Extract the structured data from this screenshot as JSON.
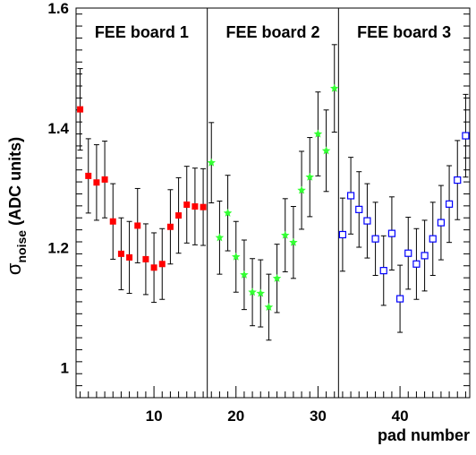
{
  "chart_data": {
    "type": "scatter",
    "xlabel": "pad number",
    "ylabel_main": "σ",
    "ylabel_sub": "noise",
    "ylabel_rest": " (ADC units)",
    "xlim": [
      0.5,
      48.5
    ],
    "ylim": [
      0.95,
      1.6
    ],
    "x_ticks": [
      10,
      20,
      30,
      40
    ],
    "x_tick_labels": [
      "10",
      "20",
      "30",
      "40"
    ],
    "y_ticks": [
      1.0,
      1.2,
      1.4,
      1.6
    ],
    "y_tick_labels": [
      "1",
      "1.2",
      "1.4",
      "1.6"
    ],
    "panel_dividers": [
      16.5,
      32.5
    ],
    "panel_labels": [
      {
        "text": "FEE board 1",
        "x_center": 8.5
      },
      {
        "text": "FEE board 2",
        "x_center": 24.5
      },
      {
        "text": "FEE board 3",
        "x_center": 40.5
      }
    ],
    "series": [
      {
        "board": "FEE board 1",
        "marker": "filled-square",
        "color": "#ff0000",
        "x": [
          1,
          2,
          3,
          4,
          5,
          6,
          7,
          8,
          9,
          10,
          11,
          12,
          13,
          14,
          15,
          16
        ],
        "y": [
          1.431,
          1.32,
          1.309,
          1.314,
          1.244,
          1.19,
          1.184,
          1.237,
          1.181,
          1.167,
          1.173,
          1.235,
          1.254,
          1.272,
          1.269,
          1.268
        ],
        "err": [
          0.068,
          0.062,
          0.063,
          0.064,
          0.063,
          0.06,
          0.06,
          0.062,
          0.059,
          0.058,
          0.059,
          0.062,
          0.063,
          0.064,
          0.064,
          0.064
        ]
      },
      {
        "board": "FEE board 2",
        "marker": "filled-star",
        "color": "#33ff33",
        "x": [
          17,
          18,
          19,
          20,
          21,
          22,
          23,
          24,
          25,
          26,
          27,
          28,
          29,
          30,
          31,
          32
        ],
        "y": [
          1.342,
          1.217,
          1.258,
          1.185,
          1.155,
          1.126,
          1.124,
          1.101,
          1.149,
          1.221,
          1.209,
          1.296,
          1.318,
          1.39,
          1.362,
          1.466
        ],
        "err": [
          0.067,
          0.061,
          0.063,
          0.059,
          0.058,
          0.056,
          0.056,
          0.055,
          0.057,
          0.061,
          0.06,
          0.065,
          0.066,
          0.07,
          0.068,
          0.073
        ]
      },
      {
        "board": "FEE board 3",
        "marker": "open-square",
        "color": "#0000ff",
        "x": [
          33,
          34,
          35,
          36,
          37,
          38,
          39,
          40,
          41,
          42,
          43,
          44,
          45,
          46,
          47,
          48
        ],
        "y": [
          1.222,
          1.287,
          1.264,
          1.245,
          1.215,
          1.162,
          1.224,
          1.115,
          1.191,
          1.173,
          1.187,
          1.215,
          1.242,
          1.273,
          1.313,
          1.387
        ],
        "err": [
          0.061,
          0.064,
          0.063,
          0.062,
          0.061,
          0.058,
          0.061,
          0.056,
          0.06,
          0.059,
          0.059,
          0.061,
          0.062,
          0.064,
          0.066,
          0.069
        ]
      }
    ],
    "colors": {
      "axis": "#000000",
      "errorbar": "#000000",
      "background": "#ffffff"
    }
  }
}
